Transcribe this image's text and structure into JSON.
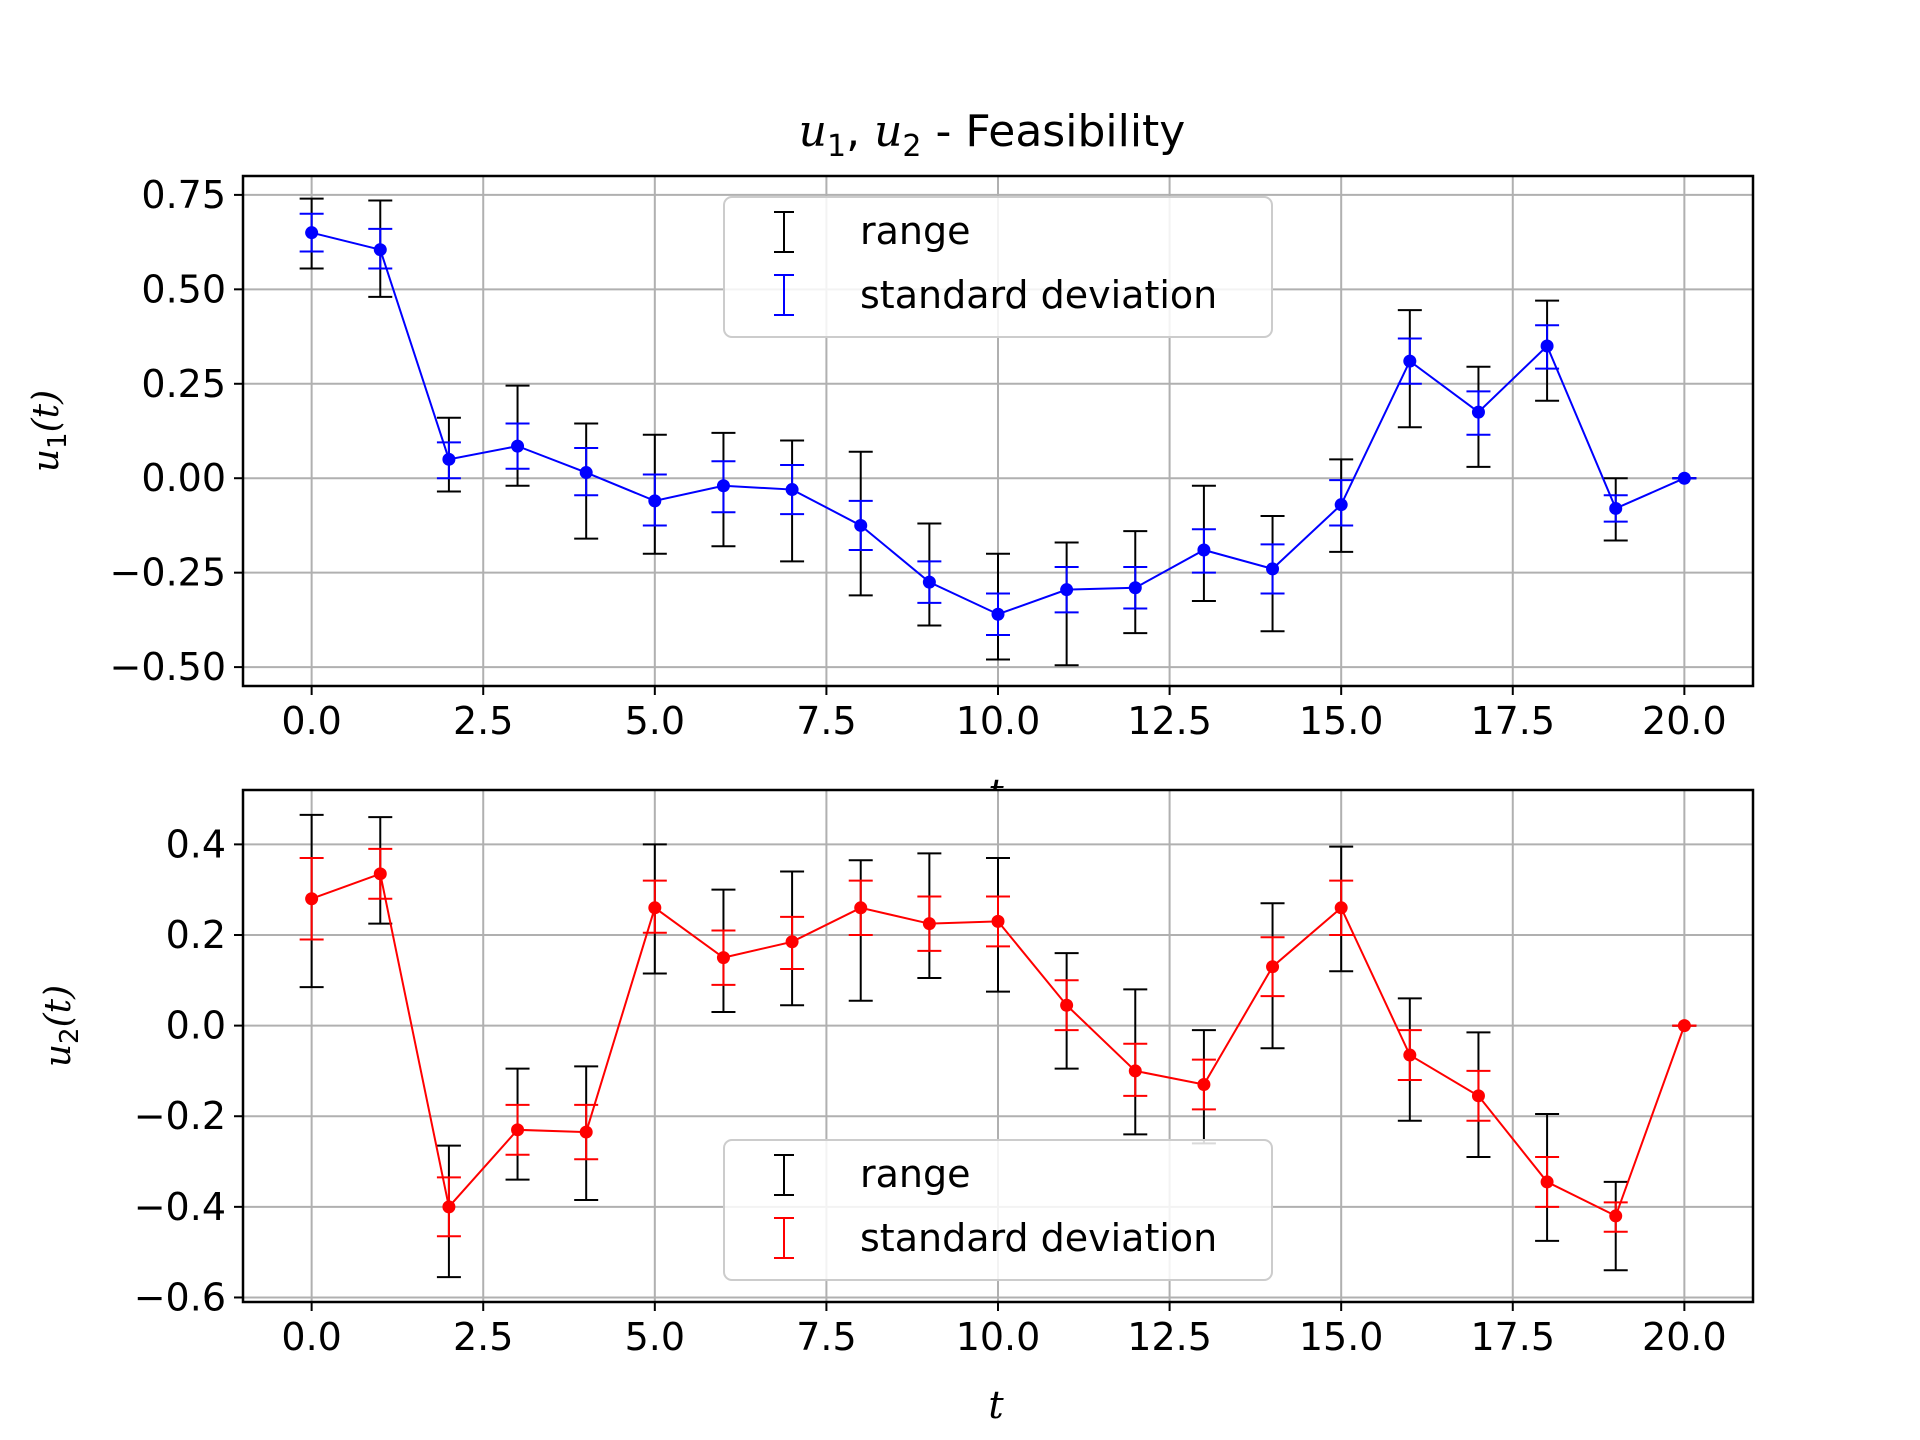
{
  "figure": {
    "title": "u1, u2 - Feasibility",
    "title_parts": {
      "a": "u",
      "a_sub": "1",
      "sep": ", ",
      "b": "u",
      "b_sub": "2",
      "rest": " - Feasibility"
    }
  },
  "chart_data": [
    {
      "type": "line",
      "ylabel": "u1(t)",
      "ylabel_parts": {
        "sym": "u",
        "sub": "1",
        "arg": "(t)"
      },
      "xlabel": "t",
      "xlim": [
        -1,
        21
      ],
      "ylim": [
        -0.55,
        0.8
      ],
      "xticks": [
        "0.0",
        "2.5",
        "5.0",
        "7.5",
        "10.0",
        "12.5",
        "15.0",
        "17.5",
        "20.0"
      ],
      "yticks": [
        "0.75",
        "0.50",
        "0.25",
        "0.00",
        "−0.25",
        "−0.50"
      ],
      "grid": true,
      "legend_position": "top-center",
      "legend": [
        "range",
        "standard deviation"
      ],
      "range_color": "#000000",
      "series_color": "#0000ff",
      "series": [
        {
          "x": [
            0,
            1,
            2,
            3,
            4,
            5,
            6,
            7,
            8,
            9,
            10,
            11,
            12,
            13,
            14,
            15,
            16,
            17,
            18,
            19,
            20
          ],
          "values": [
            0.65,
            0.605,
            0.05,
            0.085,
            0.015,
            -0.06,
            -0.02,
            -0.03,
            -0.125,
            -0.275,
            -0.36,
            -0.295,
            -0.29,
            -0.19,
            -0.24,
            -0.07,
            0.31,
            0.175,
            0.35,
            -0.08,
            0.0
          ],
          "range_low": [
            0.555,
            0.48,
            -0.035,
            -0.02,
            -0.16,
            -0.2,
            -0.18,
            -0.22,
            -0.31,
            -0.39,
            -0.48,
            -0.495,
            -0.41,
            -0.325,
            -0.405,
            -0.195,
            0.135,
            0.03,
            0.205,
            -0.165,
            0.0
          ],
          "range_high": [
            0.74,
            0.735,
            0.16,
            0.245,
            0.145,
            0.115,
            0.12,
            0.1,
            0.07,
            -0.12,
            -0.2,
            -0.17,
            -0.14,
            -0.02,
            -0.1,
            0.05,
            0.445,
            0.295,
            0.47,
            0.0,
            0.0
          ],
          "std_low": [
            0.6,
            0.555,
            0.0,
            0.025,
            -0.045,
            -0.125,
            -0.09,
            -0.095,
            -0.19,
            -0.33,
            -0.415,
            -0.355,
            -0.345,
            -0.25,
            -0.305,
            -0.125,
            0.25,
            0.115,
            0.29,
            -0.115,
            0.0
          ],
          "std_high": [
            0.7,
            0.66,
            0.095,
            0.145,
            0.08,
            0.01,
            0.045,
            0.035,
            -0.06,
            -0.22,
            -0.305,
            -0.235,
            -0.235,
            -0.135,
            -0.175,
            -0.005,
            0.37,
            0.23,
            0.405,
            -0.045,
            0.0
          ]
        }
      ]
    },
    {
      "type": "line",
      "ylabel": "u2(t)",
      "ylabel_parts": {
        "sym": "u",
        "sub": "2",
        "arg": "(t)"
      },
      "xlabel": "t",
      "xlim": [
        -1,
        21
      ],
      "ylim": [
        -0.61,
        0.52
      ],
      "xticks": [
        "0.0",
        "2.5",
        "5.0",
        "7.5",
        "10.0",
        "12.5",
        "15.0",
        "17.5",
        "20.0"
      ],
      "yticks": [
        "0.4",
        "0.2",
        "0.0",
        "−0.2",
        "−0.4",
        "−0.6"
      ],
      "grid": true,
      "legend_position": "bottom-center",
      "legend": [
        "range",
        "standard deviation"
      ],
      "range_color": "#000000",
      "series_color": "#ff0000",
      "series": [
        {
          "x": [
            0,
            1,
            2,
            3,
            4,
            5,
            6,
            7,
            8,
            9,
            10,
            11,
            12,
            13,
            14,
            15,
            16,
            17,
            18,
            19,
            20
          ],
          "values": [
            0.28,
            0.335,
            -0.4,
            -0.23,
            -0.235,
            0.26,
            0.15,
            0.185,
            0.26,
            0.225,
            0.23,
            0.045,
            -0.1,
            -0.13,
            0.13,
            0.26,
            -0.065,
            -0.155,
            -0.345,
            -0.42,
            0.0
          ],
          "range_low": [
            0.085,
            0.225,
            -0.555,
            -0.34,
            -0.385,
            0.115,
            0.03,
            0.045,
            0.055,
            0.105,
            0.075,
            -0.095,
            -0.24,
            -0.26,
            -0.05,
            0.12,
            -0.21,
            -0.29,
            -0.475,
            -0.54,
            0.0
          ],
          "range_high": [
            0.465,
            0.46,
            -0.265,
            -0.095,
            -0.09,
            0.4,
            0.3,
            0.34,
            0.365,
            0.38,
            0.37,
            0.16,
            0.08,
            -0.01,
            0.27,
            0.395,
            0.06,
            -0.015,
            -0.195,
            -0.345,
            0.0
          ],
          "std_low": [
            0.19,
            0.28,
            -0.465,
            -0.285,
            -0.295,
            0.205,
            0.09,
            0.125,
            0.2,
            0.165,
            0.175,
            -0.01,
            -0.155,
            -0.185,
            0.065,
            0.2,
            -0.12,
            -0.21,
            -0.4,
            -0.455,
            0.0
          ],
          "std_high": [
            0.37,
            0.39,
            -0.335,
            -0.175,
            -0.175,
            0.32,
            0.21,
            0.24,
            0.32,
            0.285,
            0.285,
            0.1,
            -0.04,
            -0.075,
            0.195,
            0.32,
            -0.01,
            -0.1,
            -0.29,
            -0.39,
            0.0
          ]
        }
      ]
    }
  ]
}
